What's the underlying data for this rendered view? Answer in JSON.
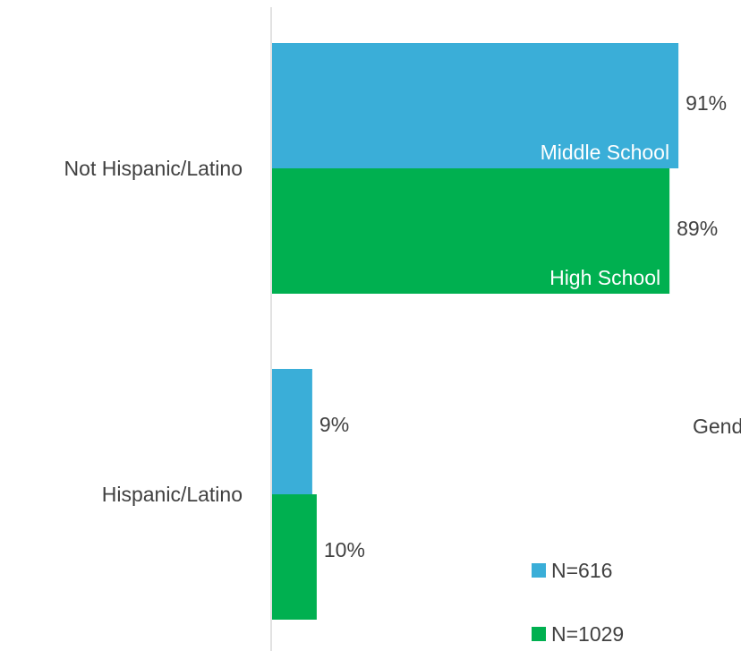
{
  "chart_data": {
    "type": "bar",
    "orientation": "horizontal",
    "categories": [
      "Not Hispanic/Latino",
      "Hispanic/Latino"
    ],
    "series": [
      {
        "name": "Middle School",
        "legend": "N=616",
        "color": "#3AAED8",
        "values": [
          91,
          9
        ],
        "labels": [
          "91%",
          "9%"
        ]
      },
      {
        "name": "High School",
        "legend": "N=1029",
        "color": "#00B050",
        "values": [
          89,
          10
        ],
        "labels": [
          "89%",
          "10%"
        ]
      }
    ],
    "xlim": [
      0,
      100
    ],
    "unit": "%",
    "grid": false,
    "legend_position": "bottom-right"
  },
  "annotations": {
    "clipped_text": "Gend"
  }
}
